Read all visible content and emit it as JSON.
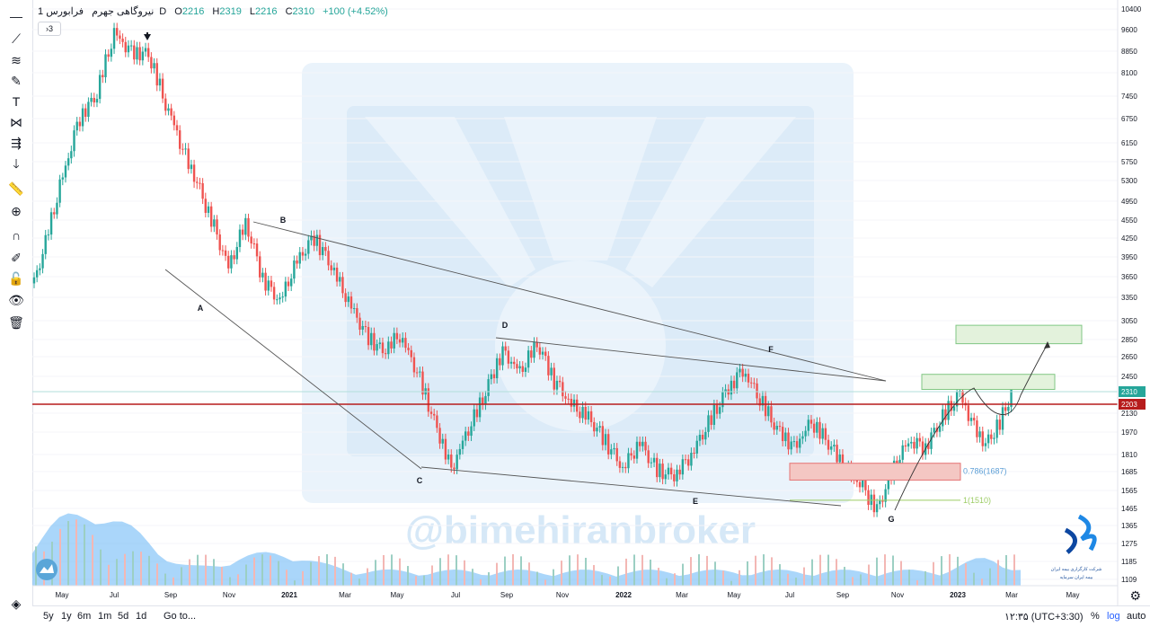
{
  "header": {
    "symbol": "نیروگاهی جهرم",
    "interval": "1D",
    "exchange": "فرابورس",
    "open_label": "O",
    "open": "2216",
    "high_label": "H",
    "high": "2319",
    "low_label": "L",
    "low": "2216",
    "close_label": "C",
    "close": "2310",
    "change": "+100 (+4.52%)",
    "collapse_label": "3"
  },
  "toolbar": {
    "icons": [
      "crosshair-icon",
      "trend-line-icon",
      "fib-icon",
      "brush-icon",
      "text-icon",
      "pattern-icon",
      "prediction-icon",
      "arrow-down-icon",
      "ruler-icon",
      "zoom-in-icon",
      "magnet-icon",
      "lock-pencil-icon",
      "lock-icon",
      "eye-icon",
      "trash-icon",
      "layers-icon"
    ]
  },
  "bottombar": {
    "ranges": [
      "5y",
      "1y",
      "6m",
      "1m",
      "5d",
      "1d"
    ],
    "goto": "Go to...",
    "time": "۱۲:۳۵ (UTC+3:30)",
    "percent": "%",
    "log": "log",
    "auto": "auto"
  },
  "watermark": "@bimehiranbroker",
  "branding": {
    "line1": "شرکت کارگزاری بیمه ایران",
    "line2": "بیمه ایران سرمایه"
  },
  "chart_data": {
    "type": "candlestick",
    "y_ticks": [
      10400,
      9600,
      8850,
      8100,
      7450,
      6750,
      6150,
      5750,
      5300,
      4950,
      4550,
      4250,
      3950,
      3650,
      3350,
      3050,
      2850,
      2650,
      2450,
      2310,
      2203,
      2130,
      1970,
      1810,
      1685,
      1565,
      1465,
      1365,
      1275,
      1185,
      1109
    ],
    "x_ticks": [
      "May",
      "Jul",
      "Sep",
      "Nov",
      "2021",
      "Mar",
      "May",
      "Jul",
      "Sep",
      "Nov",
      "2022",
      "Mar",
      "May",
      "Jul",
      "Sep",
      "Nov",
      "2023",
      "Mar",
      "May"
    ],
    "last_price": 2310,
    "last_price_color": "#26a69a",
    "support_line": 2203,
    "support_color": "#b71c1c",
    "up_color": "#26a69a",
    "down_color": "#ef5350",
    "volume_color": "#64b5f6",
    "wave_labels": [
      "A",
      "B",
      "C",
      "D",
      "E",
      "F",
      "G"
    ],
    "fib_levels": [
      {
        "label": "0.786(1687)",
        "value": 1687,
        "color": "#5d9fd6"
      },
      {
        "label": "1(1510)",
        "value": 1510,
        "color": "#9ccc65"
      }
    ],
    "zones": [
      {
        "type": "demand",
        "low": 1630,
        "high": 1745,
        "color": "#f4c7c3"
      },
      {
        "type": "target",
        "low": 2330,
        "high": 2470,
        "color": "#e3f2dc"
      },
      {
        "type": "target",
        "low": 2800,
        "high": 3000,
        "color": "#e3f2dc"
      }
    ],
    "price_path": [
      [
        0,
        3550
      ],
      [
        4,
        4200
      ],
      [
        10,
        5400
      ],
      [
        16,
        6750
      ],
      [
        22,
        7500
      ],
      [
        28,
        9500
      ],
      [
        34,
        8800
      ],
      [
        40,
        8700
      ],
      [
        46,
        7200
      ],
      [
        52,
        6000
      ],
      [
        58,
        5100
      ],
      [
        64,
        4300
      ],
      [
        68,
        3800
      ],
      [
        74,
        4500
      ],
      [
        80,
        3600
      ],
      [
        86,
        3300
      ],
      [
        92,
        3900
      ],
      [
        98,
        4250
      ],
      [
        104,
        3800
      ],
      [
        110,
        3300
      ],
      [
        116,
        2900
      ],
      [
        122,
        2700
      ],
      [
        128,
        2900
      ],
      [
        134,
        2500
      ],
      [
        140,
        2050
      ],
      [
        146,
        1700
      ],
      [
        152,
        2000
      ],
      [
        158,
        2300
      ],
      [
        164,
        2700
      ],
      [
        170,
        2500
      ],
      [
        176,
        2800
      ],
      [
        182,
        2400
      ],
      [
        188,
        2200
      ],
      [
        194,
        2100
      ],
      [
        200,
        1900
      ],
      [
        206,
        1700
      ],
      [
        212,
        1900
      ],
      [
        218,
        1700
      ],
      [
        224,
        1650
      ],
      [
        230,
        1800
      ],
      [
        236,
        2050
      ],
      [
        242,
        2300
      ],
      [
        248,
        2500
      ],
      [
        254,
        2250
      ],
      [
        260,
        2000
      ],
      [
        266,
        1850
      ],
      [
        272,
        2050
      ],
      [
        278,
        1900
      ],
      [
        284,
        1700
      ],
      [
        290,
        1580
      ],
      [
        295,
        1455
      ],
      [
        300,
        1680
      ],
      [
        306,
        1900
      ],
      [
        312,
        1850
      ],
      [
        318,
        2100
      ],
      [
        324,
        2300
      ],
      [
        328,
        2050
      ],
      [
        333,
        1870
      ],
      [
        338,
        2050
      ],
      [
        342,
        2310
      ]
    ]
  }
}
